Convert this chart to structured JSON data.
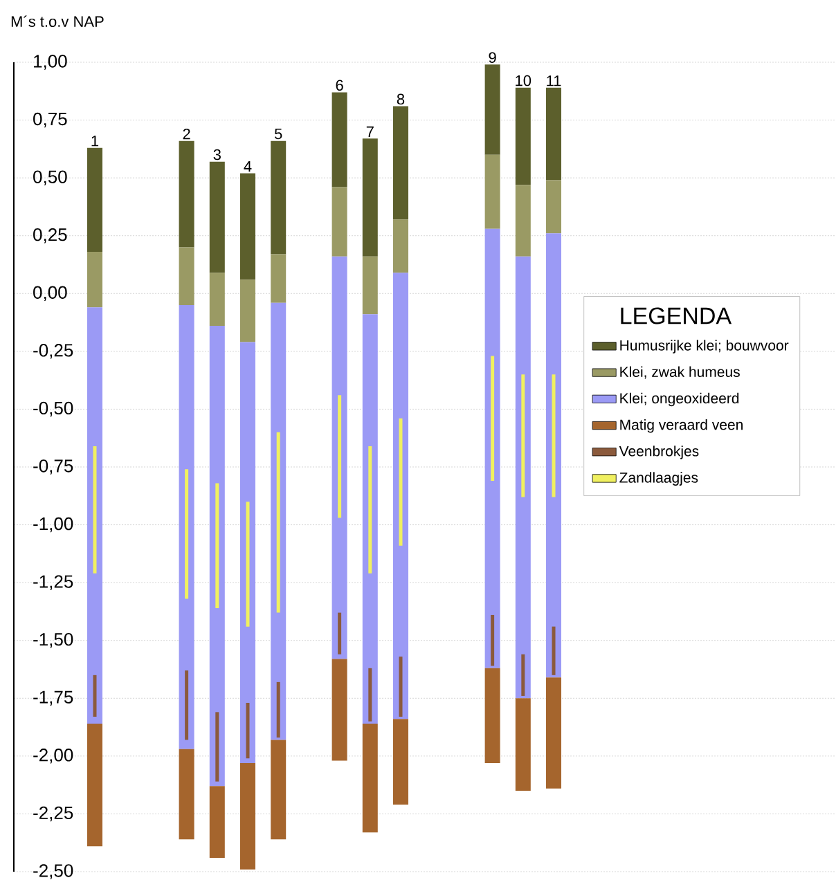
{
  "chart_data": {
    "type": "bar",
    "ylabel": "M´s t.o.v NAP",
    "legend_title": "LEGENDA",
    "legend": "right",
    "grid": "y",
    "categories": [
      "1",
      null,
      null,
      "2",
      "3",
      "4",
      "5",
      null,
      "6",
      "7",
      "8",
      null,
      null,
      "9",
      "10",
      "11"
    ],
    "ylim": [
      -2.5,
      1.0
    ],
    "yticks": [
      {
        "value": 1.0,
        "label": "1,00"
      },
      {
        "value": 0.75,
        "label": "0,75"
      },
      {
        "value": 0.5,
        "label": "0,50"
      },
      {
        "value": 0.25,
        "label": "0,25"
      },
      {
        "value": 0.0,
        "label": "0,00"
      },
      {
        "value": -0.25,
        "label": "-0,25"
      },
      {
        "value": -0.5,
        "label": "-0,50"
      },
      {
        "value": -0.75,
        "label": "-0,75"
      },
      {
        "value": -1.0,
        "label": "-1,00"
      },
      {
        "value": -1.25,
        "label": "-1,25"
      },
      {
        "value": -1.5,
        "label": "-1,50"
      },
      {
        "value": -1.75,
        "label": "-1,75"
      },
      {
        "value": -2.0,
        "label": "-2,00"
      },
      {
        "value": -2.25,
        "label": "-2,25"
      },
      {
        "value": -2.5,
        "label": "-2,50"
      }
    ],
    "series": [
      {
        "name": "Humusrijke klei; bouwvoor",
        "color": "#5c5f2c",
        "base": [
          0.18,
          null,
          null,
          0.2,
          0.09,
          0.06,
          0.17,
          null,
          0.46,
          0.16,
          0.32,
          null,
          null,
          0.6,
          0.47,
          0.49
        ],
        "values": [
          0.45,
          null,
          null,
          0.46,
          0.48,
          0.46,
          0.49,
          null,
          0.41,
          0.51,
          0.49,
          null,
          null,
          0.39,
          0.42,
          0.4
        ]
      },
      {
        "name": "Klei, zwak humeus",
        "color": "#9a9a64",
        "base": [
          -0.06,
          null,
          null,
          -0.05,
          -0.14,
          -0.21,
          -0.04,
          null,
          0.16,
          -0.09,
          0.09,
          null,
          null,
          0.28,
          0.16,
          0.26
        ],
        "values": [
          0.24,
          null,
          null,
          0.25,
          0.23,
          0.27,
          0.21,
          null,
          0.3,
          0.25,
          0.23,
          null,
          null,
          0.32,
          0.31,
          0.23
        ]
      },
      {
        "name": "Klei; ongeoxideerd",
        "color": "#9b9af5",
        "base": [
          -1.86,
          null,
          null,
          -1.97,
          -2.13,
          -2.03,
          -1.93,
          null,
          -1.58,
          -1.86,
          -1.84,
          null,
          null,
          -1.62,
          -1.75,
          -1.66
        ],
        "values": [
          1.8,
          null,
          null,
          1.92,
          1.99,
          1.82,
          1.89,
          null,
          1.74,
          1.77,
          1.93,
          null,
          null,
          1.9,
          1.91,
          1.92
        ]
      },
      {
        "name": "Matig veraard veen",
        "color": "#a5652d",
        "base": [
          -2.39,
          null,
          null,
          -2.36,
          -2.44,
          -2.49,
          -2.36,
          null,
          -2.02,
          -2.33,
          -2.21,
          null,
          null,
          -2.03,
          -2.15,
          -2.14
        ],
        "values": [
          0.53,
          null,
          null,
          0.39,
          0.31,
          0.46,
          0.43,
          null,
          0.44,
          0.47,
          0.37,
          null,
          null,
          0.41,
          0.4,
          0.48
        ]
      },
      {
        "name": "Veenbrokjes",
        "color": "#8b5a3c",
        "line_style": "dotted",
        "base": [
          -1.83,
          null,
          null,
          -1.93,
          -2.11,
          -2.01,
          -1.92,
          null,
          -1.56,
          -1.85,
          -1.83,
          null,
          null,
          -1.61,
          -1.74,
          -1.65
        ],
        "values": [
          0.18,
          null,
          null,
          0.3,
          0.3,
          0.24,
          0.24,
          null,
          0.18,
          0.23,
          0.26,
          null,
          null,
          0.22,
          0.18,
          0.21
        ]
      },
      {
        "name": "Zandlaagjes",
        "color": "#f0f060",
        "line_style": "dotted",
        "base": [
          -1.21,
          null,
          null,
          -1.32,
          -1.36,
          -1.44,
          -1.38,
          null,
          -0.97,
          -1.21,
          -1.09,
          null,
          null,
          -0.81,
          -0.88,
          -0.88
        ],
        "values": [
          0.55,
          null,
          null,
          0.56,
          0.54,
          0.54,
          0.78,
          null,
          0.53,
          0.55,
          0.55,
          null,
          null,
          0.54,
          0.53,
          0.53
        ]
      }
    ]
  }
}
